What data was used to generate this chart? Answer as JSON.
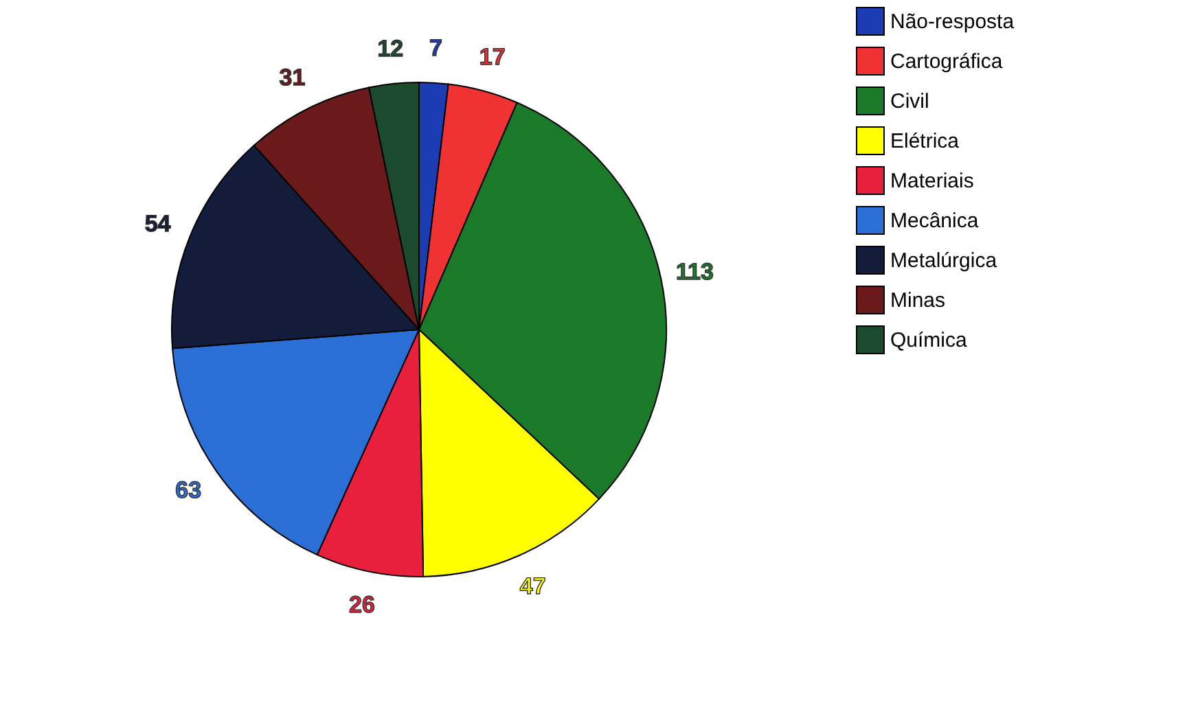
{
  "chart_data": {
    "type": "pie",
    "categories": [
      "Não-resposta",
      "Cartográfica",
      "Civil",
      "Elétrica",
      "Materiais",
      "Mecânica",
      "Metalúrgica",
      "Minas",
      "Química"
    ],
    "values": [
      7,
      17,
      113,
      47,
      26,
      63,
      54,
      31,
      12
    ],
    "colors": [
      "#1c3cb4",
      "#f03232",
      "#1a7a2a",
      "#ffff00",
      "#e8203c",
      "#2a6fd6",
      "#141c3c",
      "#6a1a1a",
      "#1c4a2c"
    ],
    "data_labels": true,
    "legend": "right"
  }
}
